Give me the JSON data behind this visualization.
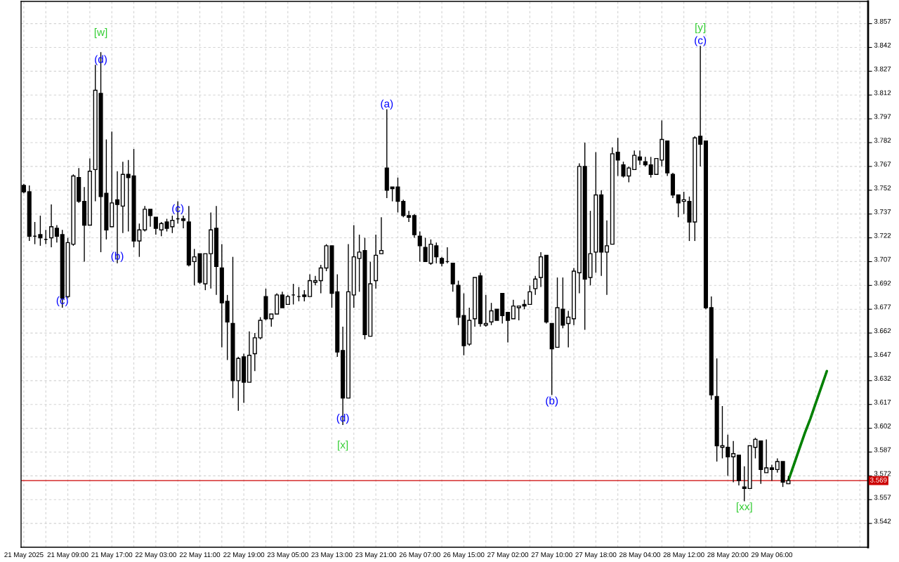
{
  "chart_data": {
    "type": "candlestick",
    "categories": [
      "21 May 2025",
      null,
      null,
      null,
      null,
      null,
      null,
      null,
      "21 May 09:00",
      null,
      null,
      null,
      null,
      null,
      null,
      null,
      "21 May 17:00",
      null,
      null,
      null,
      null,
      null,
      null,
      null,
      "22 May 03:00",
      null,
      null,
      null,
      null,
      null,
      null,
      null,
      "22 May 11:00",
      null,
      null,
      null,
      null,
      null,
      null,
      null,
      "22 May 19:00",
      null,
      null,
      null,
      null,
      null,
      null,
      null,
      "23 May 05:00",
      null,
      null,
      null,
      null,
      null,
      null,
      null,
      "23 May 13:00",
      null,
      null,
      null,
      null,
      null,
      null,
      null,
      "23 May 21:00",
      null,
      null,
      null,
      null,
      null,
      null,
      null,
      "26 May 07:00",
      null,
      null,
      null,
      null,
      null,
      null,
      null,
      "26 May 15:00",
      null,
      null,
      null,
      null,
      null,
      null,
      null,
      "27 May 02:00",
      null,
      null,
      null,
      null,
      null,
      null,
      null,
      "27 May 10:00",
      null,
      null,
      null,
      null,
      null,
      null,
      null,
      "27 May 18:00",
      null,
      null,
      null,
      null,
      null,
      null,
      null,
      "28 May 04:00",
      null,
      null,
      null,
      null,
      null,
      null,
      null,
      "28 May 12:00",
      null,
      null,
      null,
      null,
      null,
      null,
      null,
      "28 May 20:00",
      null,
      null,
      null,
      null,
      null,
      null,
      null,
      "29 May 06:00",
      null,
      null,
      null,
      null,
      null,
      null,
      null,
      null,
      null,
      null,
      null,
      null,
      null,
      null,
      null,
      null,
      null
    ],
    "ohlc": [
      [
        3.755,
        3.756,
        3.75,
        3.751
      ],
      [
        3.751,
        3.755,
        3.72,
        3.723
      ],
      [
        3.723,
        3.732,
        3.718,
        3.723
      ],
      [
        3.724,
        3.736,
        3.717,
        3.722
      ],
      [
        3.721,
        3.727,
        3.718,
        3.721
      ],
      [
        3.722,
        3.743,
        3.716,
        3.729
      ],
      [
        3.728,
        3.73,
        3.719,
        3.723
      ],
      [
        3.724,
        3.727,
        3.678,
        3.684
      ],
      [
        3.685,
        3.722,
        3.684,
        3.719
      ],
      [
        3.718,
        3.762,
        3.717,
        3.761
      ],
      [
        3.76,
        3.766,
        3.744,
        3.745
      ],
      [
        3.745,
        3.754,
        3.707,
        3.73
      ],
      [
        3.73,
        3.772,
        3.73,
        3.764
      ],
      [
        3.765,
        3.831,
        3.745,
        3.815
      ],
      [
        3.813,
        3.839,
        3.713,
        3.748
      ],
      [
        3.75,
        3.784,
        3.721,
        3.727
      ],
      [
        3.729,
        3.789,
        3.729,
        3.744
      ],
      [
        3.746,
        3.764,
        3.706,
        3.743
      ],
      [
        3.742,
        3.77,
        3.725,
        3.762
      ],
      [
        3.762,
        3.771,
        3.726,
        3.76
      ],
      [
        3.761,
        3.778,
        3.716,
        3.72
      ],
      [
        3.72,
        3.731,
        3.71,
        3.727
      ],
      [
        3.727,
        3.742,
        3.726,
        3.74
      ],
      [
        3.74,
        3.74,
        3.729,
        3.736
      ],
      [
        3.735,
        3.735,
        3.724,
        3.728
      ],
      [
        3.727,
        3.732,
        3.723,
        3.731
      ],
      [
        3.732,
        3.734,
        3.726,
        3.728
      ],
      [
        3.729,
        3.736,
        3.725,
        3.733
      ],
      [
        3.734,
        3.745,
        3.731,
        3.734
      ],
      [
        3.734,
        3.736,
        3.728,
        3.733
      ],
      [
        3.732,
        3.742,
        3.704,
        3.705
      ],
      [
        3.707,
        3.715,
        3.692,
        3.71
      ],
      [
        3.712,
        3.712,
        3.693,
        3.694
      ],
      [
        3.693,
        3.712,
        3.689,
        3.712
      ],
      [
        3.712,
        3.738,
        3.69,
        3.727
      ],
      [
        3.728,
        3.742,
        3.686,
        3.704
      ],
      [
        3.703,
        3.718,
        3.653,
        3.681
      ],
      [
        3.682,
        3.686,
        3.645,
        3.669
      ],
      [
        3.668,
        3.71,
        3.621,
        3.632
      ],
      [
        3.632,
        3.647,
        3.613,
        3.646
      ],
      [
        3.647,
        3.649,
        3.618,
        3.631
      ],
      [
        3.631,
        3.663,
        3.631,
        3.648
      ],
      [
        3.649,
        3.662,
        3.638,
        3.659
      ],
      [
        3.659,
        3.672,
        3.658,
        3.67
      ],
      [
        3.685,
        3.69,
        3.67,
        3.671
      ],
      [
        3.671,
        3.674,
        3.666,
        3.674
      ],
      [
        3.674,
        3.687,
        3.674,
        3.686
      ],
      [
        3.686,
        3.688,
        3.678,
        3.678
      ],
      [
        3.68,
        3.686,
        3.68,
        3.685
      ],
      [
        3.686,
        3.693,
        3.68,
        3.686
      ],
      [
        3.685,
        3.691,
        3.682,
        3.685
      ],
      [
        3.686,
        3.689,
        3.682,
        3.685
      ],
      [
        3.685,
        3.699,
        3.685,
        3.695
      ],
      [
        3.694,
        3.698,
        3.692,
        3.695
      ],
      [
        3.695,
        3.705,
        3.687,
        3.703
      ],
      [
        3.703,
        3.718,
        3.701,
        3.717
      ],
      [
        3.717,
        3.717,
        3.678,
        3.687
      ],
      [
        3.688,
        3.699,
        3.647,
        3.65
      ],
      [
        3.651,
        3.666,
        3.604,
        3.621
      ],
      [
        3.621,
        3.718,
        3.621,
        3.688
      ],
      [
        3.686,
        3.73,
        3.678,
        3.71
      ],
      [
        3.709,
        3.724,
        3.688,
        3.713
      ],
      [
        3.714,
        3.722,
        3.658,
        3.661
      ],
      [
        3.66,
        3.707,
        3.66,
        3.693
      ],
      [
        3.695,
        3.724,
        3.69,
        3.711
      ],
      [
        3.712,
        3.735,
        3.712,
        3.714
      ],
      [
        3.766,
        3.803,
        3.747,
        3.752
      ],
      [
        3.754,
        3.754,
        3.745,
        3.753
      ],
      [
        3.754,
        3.76,
        3.738,
        3.745
      ],
      [
        3.745,
        3.746,
        3.735,
        3.736
      ],
      [
        3.736,
        3.739,
        3.732,
        3.735
      ],
      [
        3.736,
        3.737,
        3.722,
        3.724
      ],
      [
        3.723,
        3.726,
        3.707,
        3.717
      ],
      [
        3.716,
        3.722,
        3.707,
        3.707
      ],
      [
        3.706,
        3.721,
        3.705,
        3.718
      ],
      [
        3.717,
        3.719,
        3.706,
        3.71
      ],
      [
        3.709,
        3.71,
        3.704,
        3.706
      ],
      [
        3.707,
        3.716,
        3.706,
        3.707
      ],
      [
        3.706,
        3.706,
        3.688,
        3.693
      ],
      [
        3.692,
        3.695,
        3.667,
        3.672
      ],
      [
        3.673,
        3.687,
        3.648,
        3.654
      ],
      [
        3.655,
        3.678,
        3.654,
        3.67
      ],
      [
        3.671,
        3.697,
        3.666,
        3.697
      ],
      [
        3.698,
        3.7,
        3.666,
        3.668
      ],
      [
        3.667,
        3.686,
        3.666,
        3.668
      ],
      [
        3.669,
        3.681,
        3.667,
        3.676
      ],
      [
        3.677,
        3.677,
        3.67,
        3.67
      ],
      [
        3.687,
        3.687,
        3.668,
        3.673
      ],
      [
        3.675,
        3.675,
        3.656,
        3.67
      ],
      [
        3.671,
        3.683,
        3.671,
        3.679
      ],
      [
        3.678,
        3.679,
        3.67,
        3.679
      ],
      [
        3.68,
        3.683,
        3.677,
        3.679
      ],
      [
        3.68,
        3.692,
        3.68,
        3.688
      ],
      [
        3.69,
        3.698,
        3.686,
        3.696
      ],
      [
        3.697,
        3.713,
        3.691,
        3.71
      ],
      [
        3.711,
        3.711,
        3.668,
        3.669
      ],
      [
        3.668,
        3.668,
        3.623,
        3.652
      ],
      [
        3.653,
        3.697,
        3.653,
        3.678
      ],
      [
        3.677,
        3.697,
        3.665,
        3.667
      ],
      [
        3.668,
        3.676,
        3.653,
        3.672
      ],
      [
        3.671,
        3.703,
        3.667,
        3.701
      ],
      [
        3.7,
        3.769,
        3.687,
        3.767
      ],
      [
        3.767,
        3.782,
        3.664,
        3.696
      ],
      [
        3.697,
        3.739,
        3.692,
        3.712
      ],
      [
        3.713,
        3.776,
        3.7,
        3.749
      ],
      [
        3.749,
        3.752,
        3.698,
        3.713
      ],
      [
        3.713,
        3.733,
        3.686,
        3.717
      ],
      [
        3.718,
        3.779,
        3.718,
        3.775
      ],
      [
        3.776,
        3.785,
        3.761,
        3.771
      ],
      [
        3.768,
        3.77,
        3.76,
        3.761
      ],
      [
        3.761,
        3.767,
        3.757,
        3.766
      ],
      [
        3.765,
        3.777,
        3.765,
        3.774
      ],
      [
        3.773,
        3.777,
        3.768,
        3.771
      ],
      [
        3.77,
        3.773,
        3.767,
        3.768
      ],
      [
        3.768,
        3.773,
        3.76,
        3.762
      ],
      [
        3.762,
        3.772,
        3.762,
        3.772
      ],
      [
        3.771,
        3.796,
        3.767,
        3.784
      ],
      [
        3.783,
        3.783,
        3.761,
        3.763
      ],
      [
        3.762,
        3.763,
        3.747,
        3.749
      ],
      [
        3.749,
        3.749,
        3.735,
        3.744
      ],
      [
        3.745,
        3.751,
        3.737,
        3.746
      ],
      [
        3.745,
        3.748,
        3.72,
        3.732
      ],
      [
        3.732,
        3.786,
        3.72,
        3.785
      ],
      [
        3.786,
        3.843,
        3.767,
        3.781
      ],
      [
        3.783,
        3.783,
        3.677,
        3.678
      ],
      [
        3.678,
        3.685,
        3.62,
        3.623
      ],
      [
        3.622,
        3.646,
        3.581,
        3.591
      ],
      [
        3.59,
        3.616,
        3.583,
        3.591
      ],
      [
        3.59,
        3.598,
        3.572,
        3.584
      ],
      [
        3.584,
        3.594,
        3.568,
        3.586
      ],
      [
        3.585,
        3.585,
        3.566,
        3.569
      ],
      [
        3.565,
        3.578,
        3.556,
        3.564
      ],
      [
        3.564,
        3.591,
        3.564,
        3.591
      ],
      [
        3.59,
        3.596,
        3.583,
        3.595
      ],
      [
        3.594,
        3.594,
        3.567,
        3.576
      ],
      [
        3.574,
        3.595,
        3.574,
        3.577
      ],
      [
        3.577,
        3.579,
        3.569,
        3.576
      ],
      [
        3.576,
        3.583,
        3.574,
        3.581
      ],
      [
        3.581,
        3.581,
        3.565,
        3.568
      ],
      [
        3.567,
        3.572,
        3.567,
        3.569
      ],
      null,
      null,
      null,
      null,
      null,
      null,
      null,
      null,
      null,
      null,
      null,
      null,
      null,
      null
    ],
    "series": [
      {
        "type": "line",
        "color": "#008000",
        "values": [
          null,
          null,
          null,
          null,
          null,
          null,
          null,
          null,
          null,
          null,
          null,
          null,
          null,
          null,
          null,
          null,
          null,
          null,
          null,
          null,
          null,
          null,
          null,
          null,
          null,
          null,
          null,
          null,
          null,
          null,
          null,
          null,
          null,
          null,
          null,
          null,
          null,
          null,
          null,
          null,
          null,
          null,
          null,
          null,
          null,
          null,
          null,
          null,
          null,
          null,
          null,
          null,
          null,
          null,
          null,
          null,
          null,
          null,
          null,
          null,
          null,
          null,
          null,
          null,
          null,
          null,
          null,
          null,
          null,
          null,
          null,
          null,
          null,
          null,
          null,
          null,
          null,
          null,
          null,
          null,
          null,
          null,
          null,
          null,
          null,
          null,
          null,
          null,
          null,
          null,
          null,
          null,
          null,
          null,
          null,
          null,
          null,
          null,
          null,
          null,
          null,
          null,
          null,
          null,
          null,
          null,
          null,
          null,
          null,
          null,
          null,
          null,
          null,
          null,
          null,
          null,
          null,
          null,
          null,
          null,
          null,
          null,
          null,
          null,
          null,
          null,
          null,
          null,
          null,
          null,
          null,
          null,
          null,
          null,
          null,
          null,
          null,
          null,
          null,
          3.569,
          3.579,
          3.589,
          3.599,
          3.608,
          3.618,
          3.628,
          3.638,
          null,
          null,
          null,
          null,
          null,
          null,
          null
        ]
      }
    ],
    "annotations": [
      {
        "text": "(c)",
        "y": 3.682
      },
      "[w]",
      {
        "text": "(d)",
        "y": 3.834
      },
      {
        "text": "(b)",
        "y": 3.71
      },
      {
        "text": "(c)",
        "y": 3.74
      },
      {
        "text": "(d)",
        "y": 3.608
      },
      "[x]",
      "(a)",
      "(b)",
      "[y]",
      "(c)",
      "[xx]"
    ],
    "ylim": [
      3.527,
      3.871
    ],
    "yticks": [
      3.542,
      3.557,
      3.572,
      3.587,
      3.602,
      3.617,
      3.632,
      3.647,
      3.662,
      3.677,
      3.692,
      3.707,
      3.722,
      3.737,
      3.752,
      3.767,
      3.782,
      3.797,
      3.812,
      3.827,
      3.842,
      3.857
    ],
    "ref_lines": [
      {
        "axis": "y",
        "value": 3.569,
        "label": "3.569",
        "color": "#cc0000"
      }
    ],
    "grid": true
  }
}
